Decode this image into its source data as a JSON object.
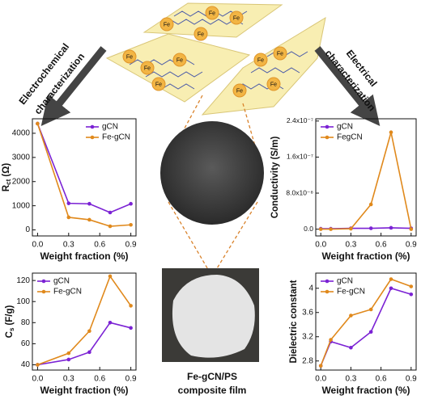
{
  "illustration": {
    "left_label": [
      "Electrochemical",
      "characterization"
    ],
    "right_label": [
      "Electrical",
      "characterization"
    ],
    "fe_label": "Fe",
    "film_caption": [
      "Fe-gCN/PS",
      "composite film"
    ]
  },
  "chart_data": [
    {
      "type": "line",
      "y_label": "R",
      "y_label_sub": "ct",
      "y_label_unit": "(Ω)",
      "x_label": "Weight fraction (%)",
      "x": [
        0,
        0.3,
        0.5,
        0.7,
        0.9
      ],
      "xlim": [
        -0.05,
        0.95
      ],
      "xticks": [
        {
          "value": 0,
          "label": "0.0"
        },
        0.3,
        0.6,
        0.9
      ],
      "ylim": [
        -250,
        4600
      ],
      "yticks": [
        0,
        1000,
        2000,
        3000,
        4000
      ],
      "legend": "upper right",
      "series": [
        {
          "name": "gCN",
          "color": "#7b22d4",
          "values": [
            4400,
            1100,
            1080,
            720,
            1080
          ]
        },
        {
          "name": "Fe-gCN",
          "color": "#e0891c",
          "values": [
            4400,
            520,
            420,
            150,
            210
          ]
        }
      ]
    },
    {
      "type": "line",
      "y_label": "Conductivity (S/m)",
      "x_label": "Weight fraction (%)",
      "x": [
        0,
        0.1,
        0.3,
        0.5,
        0.7,
        0.9
      ],
      "xlim": [
        -0.05,
        0.95
      ],
      "xticks": [
        {
          "value": 0,
          "label": "0.0"
        },
        0.3,
        0.6,
        0.9
      ],
      "ylim": [
        -1.5e-08,
        2.45e-07
      ],
      "yticks": [
        {
          "value": 0,
          "label": "0.0"
        },
        {
          "value": 8e-08,
          "label": "8.0x10⁻⁸"
        },
        {
          "value": 1.6e-07,
          "label": "1.6x10⁻⁷"
        },
        {
          "value": 2.4e-07,
          "label": "2.4x10⁻⁷"
        }
      ],
      "legend": "upper left",
      "series": [
        {
          "name": "gCN",
          "color": "#7b22d4",
          "values": [
            1e-09,
            1e-09,
            2e-09,
            2e-09,
            3e-09,
            2e-09
          ]
        },
        {
          "name": "FegCN",
          "color": "#e0891c",
          "values": [
            0,
            0,
            1e-09,
            5.5e-08,
            2.15e-07,
            0
          ]
        }
      ]
    },
    {
      "type": "line",
      "y_label": "C",
      "y_label_sub": "s",
      "y_label_unit": "(F/g)",
      "x_label": "Weight fraction (%)",
      "x": [
        0,
        0.3,
        0.5,
        0.7,
        0.9
      ],
      "xlim": [
        -0.05,
        0.95
      ],
      "xticks": [
        {
          "value": 0,
          "label": "0.0"
        },
        0.3,
        0.6,
        0.9
      ],
      "ylim": [
        35,
        127
      ],
      "yticks": [
        40,
        60,
        80,
        100,
        120
      ],
      "legend": "upper left",
      "series": [
        {
          "name": "gCN",
          "color": "#7b22d4",
          "values": [
            40,
            45,
            52,
            80,
            75
          ]
        },
        {
          "name": "Fe-gCN",
          "color": "#e0891c",
          "values": [
            40,
            51,
            72,
            124,
            96
          ]
        }
      ]
    },
    {
      "type": "line",
      "y_label": "Dielectric constant",
      "x_label": "Weight fraction (%)",
      "x": [
        0,
        0.1,
        0.3,
        0.5,
        0.7,
        0.9
      ],
      "xlim": [
        -0.05,
        0.95
      ],
      "xticks": [
        {
          "value": 0,
          "label": "0.0"
        },
        0.3,
        0.6,
        0.9
      ],
      "ylim": [
        2.65,
        4.25
      ],
      "yticks": [
        2.8,
        3.2,
        3.6,
        4.0
      ],
      "legend": "upper left",
      "series": [
        {
          "name": "gCN",
          "color": "#7b22d4",
          "values": [
            2.72,
            3.12,
            3.02,
            3.28,
            4.0,
            3.9
          ]
        },
        {
          "name": "Fe-gCN",
          "color": "#e0891c",
          "values": [
            2.72,
            3.15,
            3.55,
            3.65,
            4.15,
            4.03
          ]
        }
      ]
    }
  ]
}
